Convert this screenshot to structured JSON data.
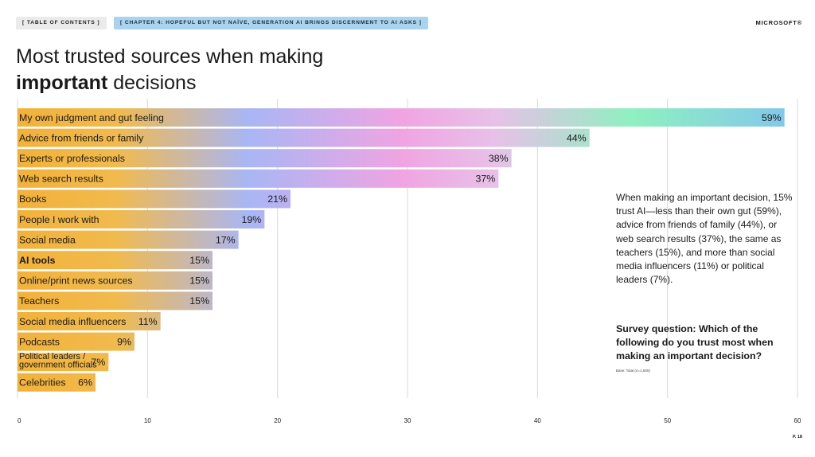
{
  "nav": {
    "toc_label": "[   TABLE OF CONTENTS   ]",
    "chapter_label": "[   CHAPTER 4: HOPEFUL BUT NOT NAÏVE, GENERATION AI BRINGS DISCERNMENT TO AI ASKS   ]"
  },
  "brand": "MICROSOFT®",
  "title": {
    "line1": "Most trusted sources when making",
    "line2_bold": "important",
    "line2_rest": " decisions"
  },
  "side_text": "When making an important decision, 15% trust AI—less than their own gut (59%), advice from friends of family (44%), or web search results (37%), the same as teachers (15%), and more than social media influencers (11%) or political leaders (7%).",
  "survey_question": "Survey question: Which of the following do you trust most when making an important decision?",
  "base_note": "Base: Total (n=1,000)",
  "page_number": "P. 18",
  "colors": {
    "orange": "#f2b23a",
    "blue": "#a9b6f5",
    "pink": "#f0a4e2",
    "green": "#8ff0c0",
    "sky": "#82c8ea",
    "grid": "#d9d9d9"
  },
  "chart_data": {
    "type": "bar",
    "orientation": "horizontal",
    "title": "Most trusted sources when making important decisions",
    "categories": [
      "My own judgment and gut feeling",
      "Advice from friends or family",
      "Experts or professionals",
      "Web search results",
      "Books",
      "People I work with",
      "Social media",
      "AI tools",
      "Online/print news sources",
      "Teachers",
      "Social media influencers",
      "Podcasts",
      "Political leaders  /\ngovernment officials",
      "Celebrities"
    ],
    "values": [
      59,
      44,
      38,
      37,
      21,
      19,
      17,
      15,
      15,
      15,
      11,
      9,
      7,
      6
    ],
    "value_labels": [
      "59%",
      "44%",
      "38%",
      "37%",
      "21%",
      "19%",
      "17%",
      "15%",
      "15%",
      "15%",
      "11%",
      "9%",
      "7%",
      "6%"
    ],
    "highlight": "AI tools",
    "xlim": [
      0,
      60
    ],
    "xticks": [
      0,
      10,
      20,
      30,
      40,
      50,
      60
    ],
    "grid": true
  }
}
